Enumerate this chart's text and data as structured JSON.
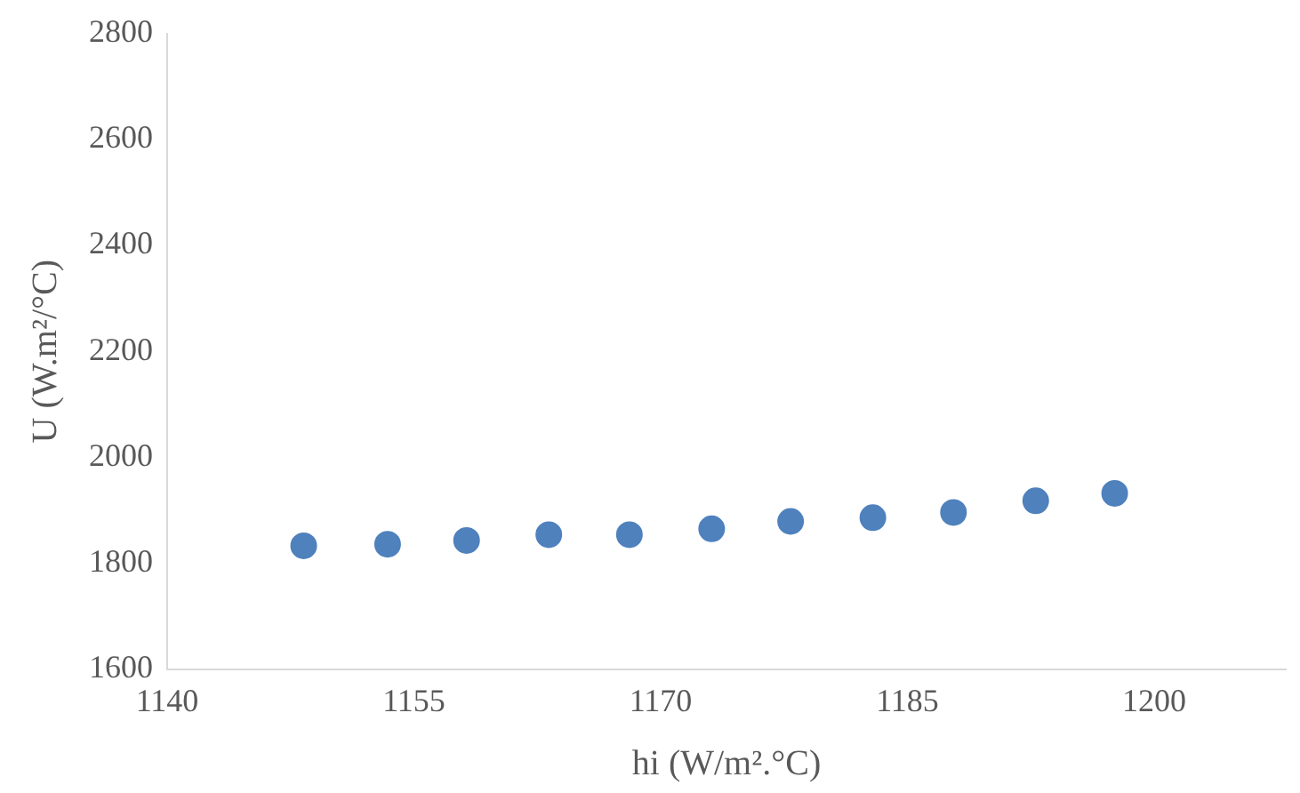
{
  "chart_data": {
    "type": "scatter",
    "xlabel": "hi (W/m².°C)",
    "ylabel": "U (W.m²/°C)",
    "x": [
      1148.3,
      1153.4,
      1158.2,
      1163.2,
      1168.1,
      1173.1,
      1177.9,
      1182.9,
      1187.8,
      1192.8,
      1197.6
    ],
    "series": [
      {
        "color": "#4f81bd",
        "values": [
          1833,
          1836,
          1843,
          1854,
          1854,
          1865,
          1879,
          1886,
          1896,
          1918,
          1932
        ]
      }
    ],
    "xlim": [
      1140,
      1208
    ],
    "xticks": [
      1140,
      1155,
      1170,
      1185,
      1200
    ],
    "ylim": [
      1600,
      2800
    ],
    "yticks": [
      1600,
      1800,
      2000,
      2200,
      2400,
      2600,
      2800
    ],
    "grid": false,
    "legend": false,
    "marker": "circle"
  }
}
